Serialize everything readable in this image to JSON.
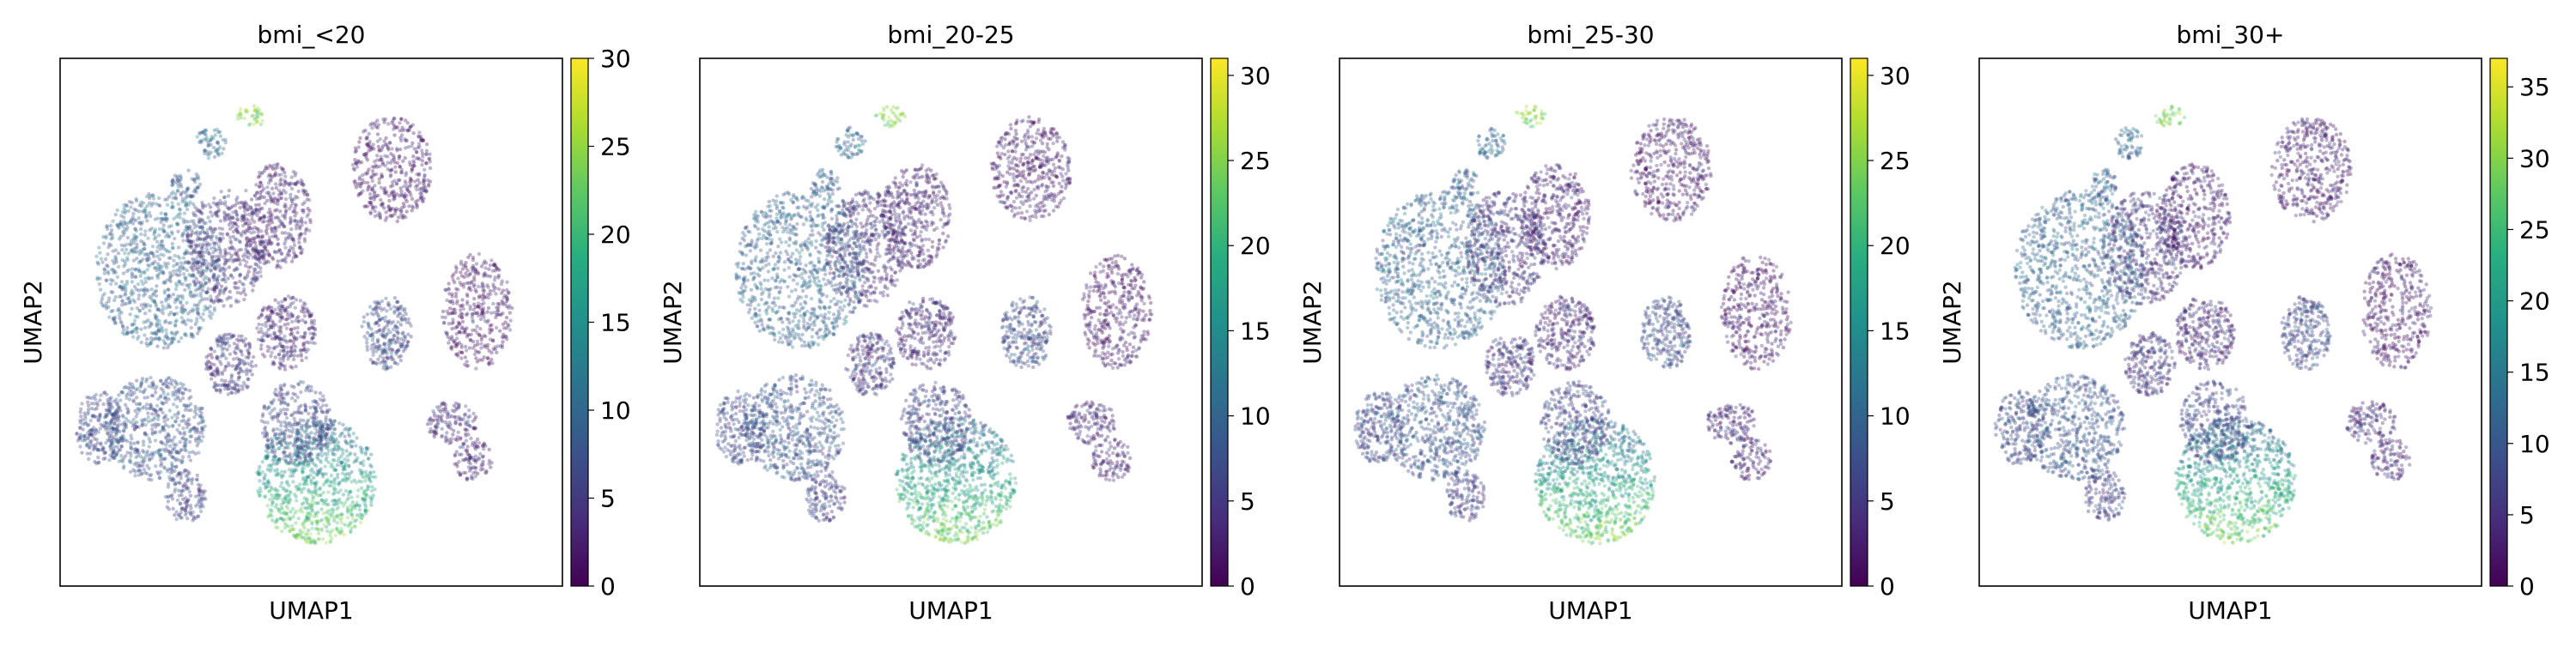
{
  "chart_data": [
    {
      "type": "scatter",
      "title": "bmi_<20",
      "xlabel": "UMAP1",
      "ylabel": "UMAP2",
      "colorbar": {
        "cmap": "viridis",
        "range": [
          0,
          30
        ],
        "ticks": [
          "0",
          "5",
          "10",
          "15",
          "20",
          "25",
          "30"
        ]
      },
      "grid": false
    },
    {
      "type": "scatter",
      "title": "bmi_20-25",
      "xlabel": "UMAP1",
      "ylabel": "UMAP2",
      "colorbar": {
        "cmap": "viridis",
        "range": [
          0,
          31
        ],
        "ticks": [
          "0",
          "5",
          "10",
          "15",
          "20",
          "25",
          "30"
        ]
      },
      "grid": false
    },
    {
      "type": "scatter",
      "title": "bmi_25-30",
      "xlabel": "UMAP1",
      "ylabel": "UMAP2",
      "colorbar": {
        "cmap": "viridis",
        "range": [
          0,
          31
        ],
        "ticks": [
          "0",
          "5",
          "10",
          "15",
          "20",
          "25",
          "30"
        ]
      },
      "grid": false
    },
    {
      "type": "scatter",
      "title": "bmi_30+",
      "xlabel": "UMAP1",
      "ylabel": "UMAP2",
      "colorbar": {
        "cmap": "viridis",
        "range": [
          0,
          37
        ],
        "ticks": [
          "0",
          "5",
          "10",
          "15",
          "20",
          "25",
          "30",
          "35"
        ]
      },
      "grid": false
    }
  ]
}
